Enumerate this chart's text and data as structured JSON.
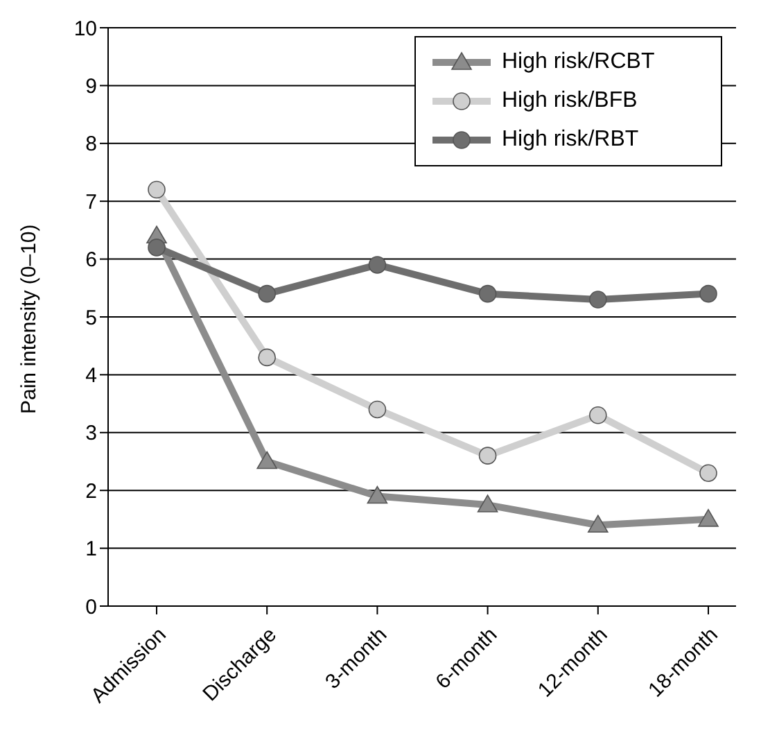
{
  "chart_data": {
    "type": "line",
    "ylabel": "Pain intensity (0–10)",
    "categories": [
      "Admission",
      "Discharge",
      "3-month",
      "6-month",
      "12-month",
      "18-month"
    ],
    "series": [
      {
        "name": "High risk/RCBT",
        "color": "#8c8c8c",
        "marker": "triangle",
        "values": [
          6.4,
          2.5,
          1.9,
          1.75,
          1.4,
          1.5
        ]
      },
      {
        "name": "High risk/BFB",
        "color": "#cfcfcf",
        "marker": "circle",
        "values": [
          7.2,
          4.3,
          3.4,
          2.6,
          3.3,
          2.3
        ]
      },
      {
        "name": "High risk/RBT",
        "color": "#6e6e6e",
        "marker": "circle",
        "values": [
          6.2,
          5.4,
          5.9,
          5.4,
          5.3,
          5.4
        ]
      }
    ],
    "ylim": [
      0,
      10
    ],
    "yticks": [
      0,
      1,
      2,
      3,
      4,
      5,
      6,
      7,
      8,
      9,
      10
    ],
    "grid": "y",
    "legend": "top right",
    "line_style": "solid"
  }
}
